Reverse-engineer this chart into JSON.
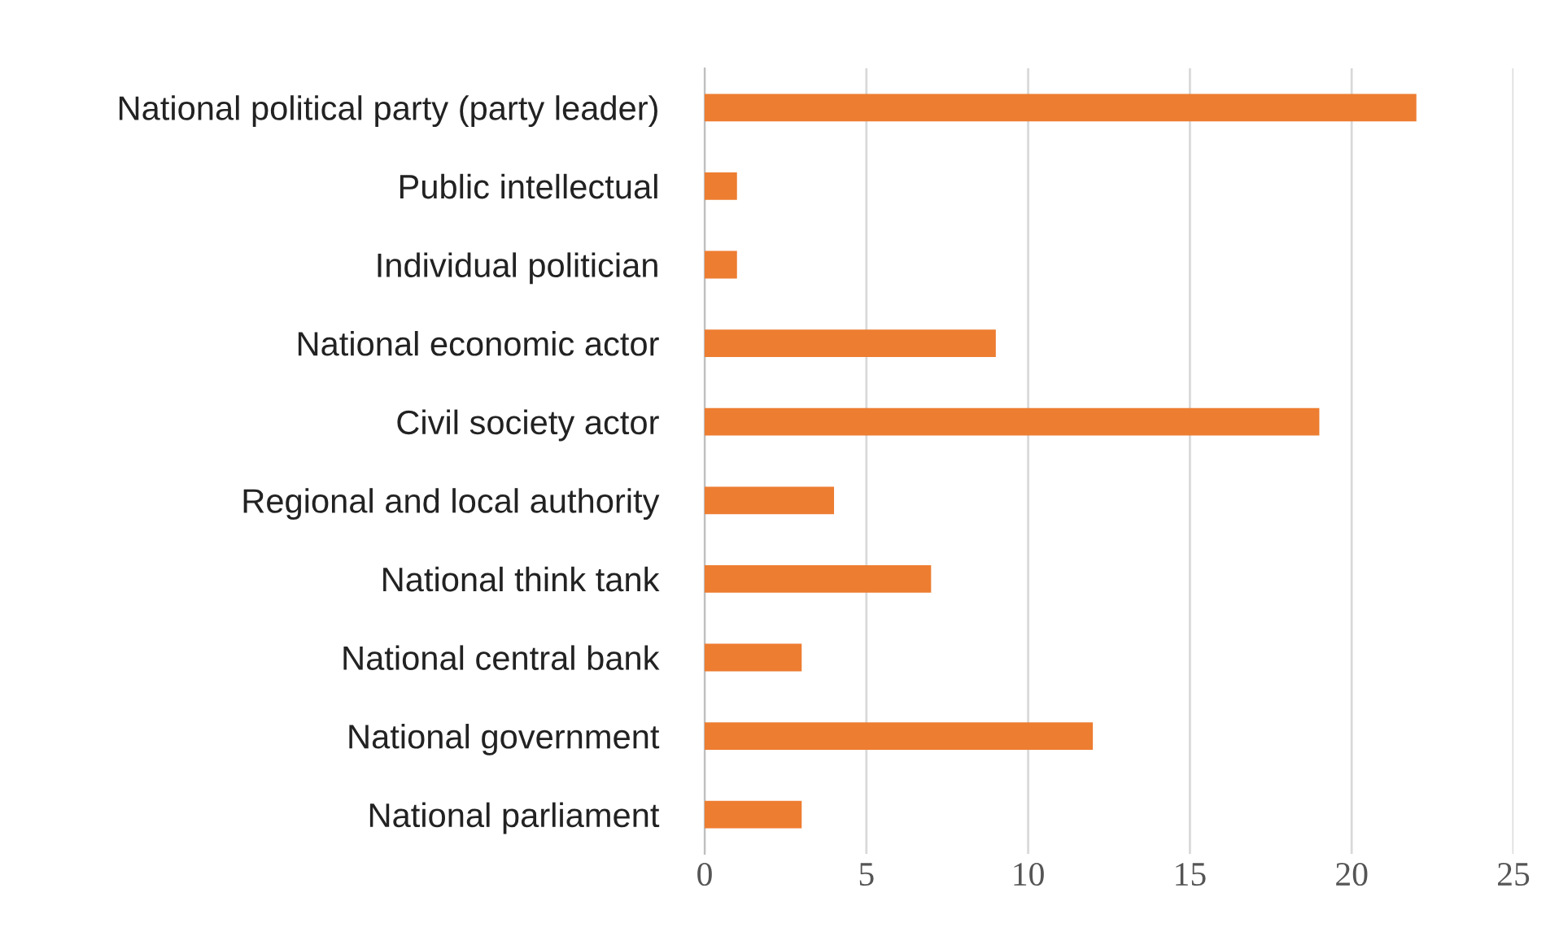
{
  "chart_data": {
    "type": "bar",
    "orientation": "horizontal",
    "categories": [
      "National political party (party leader)",
      "Public intellectual",
      "Individual politician",
      "National economic actor",
      "Civil society actor",
      "Regional and local authority",
      "National think tank",
      "National central bank",
      "National government",
      "National parliament"
    ],
    "values": [
      22,
      1,
      1,
      9,
      19,
      4,
      7,
      3,
      12,
      3
    ],
    "color": "#ed7d31",
    "xlim": [
      0,
      25
    ],
    "xticks": [
      0,
      5,
      10,
      15,
      20,
      25
    ],
    "grid": "x",
    "legend": false
  }
}
